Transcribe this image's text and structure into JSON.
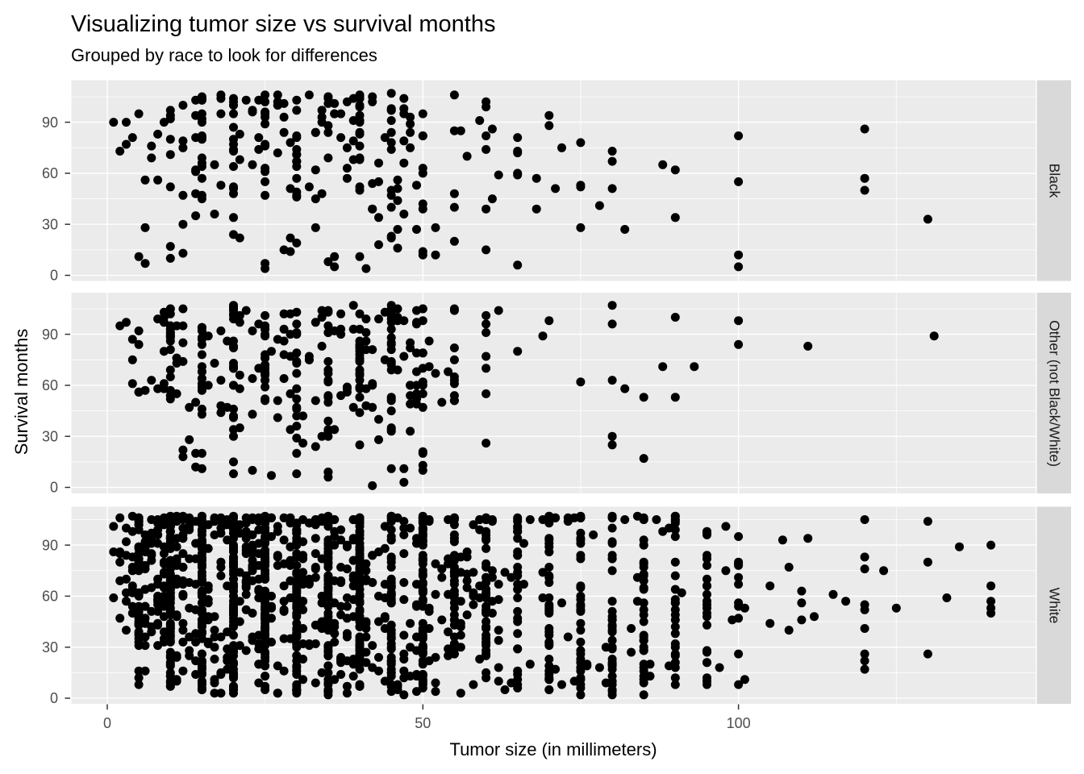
{
  "title": "Visualizing tumor size vs survival months",
  "subtitle": "Grouped by race to look for differences",
  "chart_data": {
    "type": "scatter",
    "title": "Visualizing tumor size vs survival months",
    "subtitle": "Grouped by race to look for differences",
    "xlabel": "Tumor size (in millimeters)",
    "ylabel": "Survival months",
    "facet_variable": "race",
    "facet_layout": "rows, strip labels on right",
    "xlim": [
      -5.7,
      147.1
    ],
    "ylim": [
      -5.4,
      112.4
    ],
    "x_ticks": [
      0,
      50,
      100
    ],
    "x_tick_labels": [
      "0",
      "50",
      "100"
    ],
    "x_minor": [
      25,
      75,
      125
    ],
    "y_ticks": [
      0,
      30,
      60,
      90
    ],
    "y_tick_labels": [
      "0",
      "30",
      "60",
      "90"
    ],
    "y_minor": [
      15,
      45,
      75,
      105
    ],
    "grid": "white major and minor gridlines on gray panel",
    "legend": "none",
    "style": {
      "panel_bg": "#EBEBEB",
      "strip_bg": "#D9D9D9",
      "grid_color": "#FFFFFF",
      "point_color": "#000000",
      "point_radius": 5.5,
      "tick_label_color": "#4D4D4D",
      "tick_mark_color": "#333333",
      "strip_text_color": "#1A1A1A"
    },
    "note": "Tumor sizes concentrate on 5 mm multiples (vertical striping); survival capped near 107 months. Dense overplotted clouds are encoded as clusters {x-range, y-range, n, snap5 = share of points snapped to 5mm grid}; isolated readable points listed explicitly in outliers.",
    "facets": [
      {
        "label": "Black",
        "n_points_approx": 280,
        "clusters": [
          {
            "x": [
              8,
              48
            ],
            "y": [
              44,
              107
            ],
            "n": 150,
            "snap5": 0.5
          },
          {
            "x": [
              10,
              45
            ],
            "y": [
              100,
              107
            ],
            "n": 20,
            "snap5": 0.4
          },
          {
            "x": [
              46,
              75
            ],
            "y": [
              38,
              107
            ],
            "n": 38,
            "snap5": 0.6
          },
          {
            "x": [
              5,
              55
            ],
            "y": [
              3,
              40
            ],
            "n": 40,
            "snap5": 0.4
          },
          {
            "x": [
              1,
              8
            ],
            "y": [
              48,
              98
            ],
            "n": 10,
            "snap5": 0
          }
        ],
        "outliers": [
          [
            55,
            20
          ],
          [
            60,
            15
          ],
          [
            65,
            6
          ],
          [
            70,
            88
          ],
          [
            72,
            75
          ],
          [
            75,
            28
          ],
          [
            78,
            41
          ],
          [
            80,
            73
          ],
          [
            80,
            67
          ],
          [
            80,
            51
          ],
          [
            82,
            27
          ],
          [
            88,
            65
          ],
          [
            90,
            62
          ],
          [
            90,
            34
          ],
          [
            100,
            82
          ],
          [
            100,
            55
          ],
          [
            100,
            12
          ],
          [
            100,
            5
          ],
          [
            120,
            86
          ],
          [
            120,
            57
          ],
          [
            120,
            50
          ],
          [
            130,
            33
          ]
        ]
      },
      {
        "label": "Other (not Black/White)",
        "n_points_approx": 360,
        "clusters": [
          {
            "x": [
              8,
              50
            ],
            "y": [
              50,
              107
            ],
            "n": 235,
            "snap5": 0.5
          },
          {
            "x": [
              12,
              50
            ],
            "y": [
              25,
              50
            ],
            "n": 45,
            "snap5": 0.45
          },
          {
            "x": [
              10,
              55
            ],
            "y": [
              4,
              24
            ],
            "n": 22,
            "snap5": 0.4
          },
          {
            "x": [
              50,
              58
            ],
            "y": [
              40,
              107
            ],
            "n": 18,
            "snap5": 0.7
          },
          {
            "x": [
              2,
              8
            ],
            "y": [
              55,
              97
            ],
            "n": 10,
            "snap5": 0
          }
        ],
        "outliers": [
          [
            2,
            95
          ],
          [
            42,
            1
          ],
          [
            47,
            3
          ],
          [
            60,
            101
          ],
          [
            60,
            96
          ],
          [
            60,
            91
          ],
          [
            60,
            77
          ],
          [
            60,
            70
          ],
          [
            60,
            55
          ],
          [
            60,
            26
          ],
          [
            62,
            104
          ],
          [
            65,
            80
          ],
          [
            69,
            89
          ],
          [
            70,
            98
          ],
          [
            75,
            62
          ],
          [
            80,
            107
          ],
          [
            80,
            96
          ],
          [
            80,
            63
          ],
          [
            80,
            30
          ],
          [
            80,
            25
          ],
          [
            82,
            58
          ],
          [
            85,
            53
          ],
          [
            85,
            17
          ],
          [
            88,
            71
          ],
          [
            90,
            100
          ],
          [
            90,
            53
          ],
          [
            93,
            71
          ],
          [
            100,
            98
          ],
          [
            100,
            84
          ],
          [
            111,
            83
          ],
          [
            131,
            89
          ]
        ]
      },
      {
        "label": "White",
        "n_points_approx": 1520,
        "clusters": [
          {
            "x": [
              5,
              40
            ],
            "y": [
              32,
              107
            ],
            "n": 620,
            "snap5": 0.45
          },
          {
            "x": [
              1,
              10
            ],
            "y": [
              40,
              107
            ],
            "n": 60,
            "snap5": 0
          },
          {
            "x": [
              40,
              62
            ],
            "y": [
              22,
              107
            ],
            "n": 260,
            "snap5": 0.6
          },
          {
            "x": [
              62,
              92
            ],
            "y": [
              8,
              107
            ],
            "n": 170,
            "snap5": 0.75
          },
          {
            "x": [
              5,
              50
            ],
            "y": [
              2,
              32
            ],
            "n": 210,
            "snap5": 0.5
          },
          {
            "x": [
              50,
              90
            ],
            "y": [
              2,
              22
            ],
            "n": 45,
            "snap5": 0.7
          },
          {
            "x": [
              95,
              101
            ],
            "y": [
              4,
              107
            ],
            "n": 40,
            "snap5": 0.85
          },
          {
            "x": [
              103,
              112
            ],
            "y": [
              40,
              95
            ],
            "n": 10,
            "snap5": 0.6
          },
          {
            "x": [
              3,
              92
            ],
            "y": [
              104,
              107
            ],
            "n": 90,
            "snap5": 0.5
          }
        ],
        "outliers": [
          [
            115,
            61
          ],
          [
            117,
            57
          ],
          [
            120,
            105
          ],
          [
            120,
            83
          ],
          [
            120,
            76
          ],
          [
            120,
            55
          ],
          [
            120,
            52
          ],
          [
            120,
            41
          ],
          [
            120,
            26
          ],
          [
            120,
            22
          ],
          [
            120,
            17
          ],
          [
            123,
            75
          ],
          [
            125,
            53
          ],
          [
            130,
            104
          ],
          [
            130,
            80
          ],
          [
            130,
            26
          ],
          [
            133,
            59
          ],
          [
            135,
            89
          ],
          [
            140,
            90
          ],
          [
            140,
            66
          ],
          [
            140,
            57
          ],
          [
            140,
            53
          ],
          [
            140,
            50
          ]
        ]
      }
    ]
  }
}
